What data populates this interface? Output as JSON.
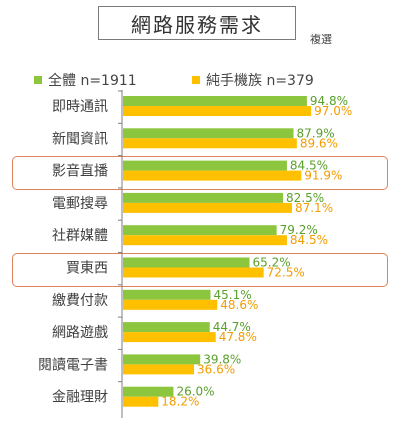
{
  "title": "網路服務需求",
  "note": "複選",
  "colors": {
    "all": "#8cc63f",
    "mobile_only": "#ffc000",
    "all_label": "#5aa02c",
    "mobile_label": "#f39c00",
    "highlight_border": "#e0825a",
    "axis": "#7f7f7f"
  },
  "chart_data": {
    "type": "bar",
    "orientation": "horizontal",
    "title": "網路服務需求",
    "note": "複選",
    "legend_position": "top-left",
    "grid": false,
    "xlim": [
      0,
      100
    ],
    "categories": [
      "即時通訊",
      "新聞資訊",
      "影音直播",
      "電郵搜尋",
      "社群媒體",
      "買東西",
      "繳費付款",
      "網路遊戲",
      "閱讀電子書",
      "金融理財"
    ],
    "series": [
      {
        "name": "全體 n=1911",
        "values": [
          94.8,
          87.9,
          84.5,
          82.5,
          79.2,
          65.2,
          45.1,
          44.7,
          39.8,
          26.0
        ],
        "labels": [
          "94.8%",
          "87.9%",
          "84.5%",
          "82.5%",
          "79.2%",
          "65.2%",
          "45.1%",
          "44.7%",
          "39.8%",
          "26.0%"
        ]
      },
      {
        "name": "純手機族 n=379",
        "values": [
          97.0,
          89.6,
          91.9,
          87.1,
          84.5,
          72.5,
          48.6,
          47.8,
          36.6,
          18.2
        ],
        "labels": [
          "97.0%",
          "89.6%",
          "91.9%",
          "87.1%",
          "84.5%",
          "72.5%",
          "48.6%",
          "47.8%",
          "36.6%",
          "18.2%"
        ]
      }
    ],
    "highlighted_categories": [
      "影音直播",
      "買東西"
    ]
  }
}
